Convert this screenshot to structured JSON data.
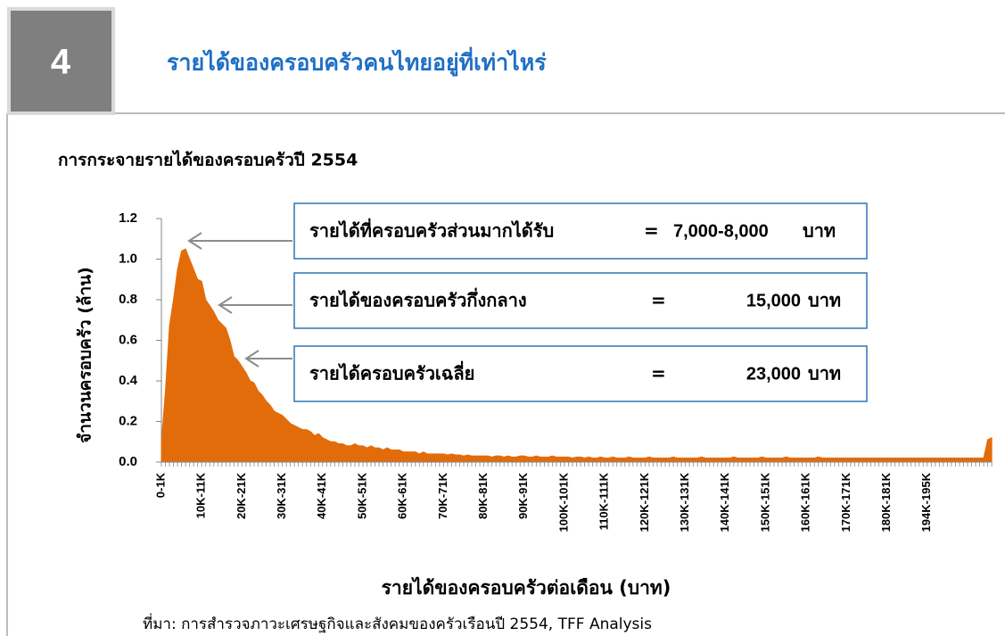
{
  "slide_number": "4",
  "title": "รายได้ของครอบครัวคนไทยอยู่ที่เท่าไหร่",
  "source": "ที่มา: การสำรวจภาวะเศรษฐกิจและสังคมของครัวเรือนปี 2554, TFF Analysis",
  "chart_data": {
    "type": "area",
    "title": "การกระจายรายได้ของครอบครัวปี 2554",
    "y_label": "จำนวนครอบครัว (ล้าน)",
    "x_label": "รายได้ของครอบครัวต่อเดือน (บาท)",
    "color": "#e36c0a",
    "ylim": [
      0,
      1.2
    ],
    "yticks": [
      {
        "value": 0,
        "label": "0.0"
      },
      0.2,
      0.4,
      0.6,
      0.8,
      {
        "value": 1,
        "label": "1.0"
      },
      1.2
    ],
    "annotations": [
      {
        "label": "รายได้ที่ครอบครัวส่วนมากได้รับ",
        "equals": "=",
        "value": "7,000-8,000",
        "unit": "บาท"
      },
      {
        "label": "รายได้ของครอบครัวกึ่งกลาง",
        "equals": "=",
        "value": "15,000",
        "unit": "บาท"
      },
      {
        "label": "รายได้ครอบครัวเฉลี่ย",
        "equals": "=",
        "value": "23,000",
        "unit": "บาท"
      }
    ],
    "categories": [
      "0-1K",
      null,
      null,
      null,
      null,
      null,
      null,
      null,
      null,
      null,
      "10K-11K",
      null,
      null,
      null,
      null,
      null,
      null,
      null,
      null,
      null,
      "20K-21K",
      null,
      null,
      null,
      null,
      null,
      null,
      null,
      null,
      null,
      "30K-31K",
      null,
      null,
      null,
      null,
      null,
      null,
      null,
      null,
      null,
      "40K-41K",
      null,
      null,
      null,
      null,
      null,
      null,
      null,
      null,
      null,
      "50K-51K",
      null,
      null,
      null,
      null,
      null,
      null,
      null,
      null,
      null,
      "60K-61K",
      null,
      null,
      null,
      null,
      null,
      null,
      null,
      null,
      null,
      "70K-71K",
      null,
      null,
      null,
      null,
      null,
      null,
      null,
      null,
      null,
      "80K-81K",
      null,
      null,
      null,
      null,
      null,
      null,
      null,
      null,
      null,
      "90K-91K",
      null,
      null,
      null,
      null,
      null,
      null,
      null,
      null,
      null,
      "100K-101K",
      null,
      null,
      null,
      null,
      null,
      null,
      null,
      null,
      null,
      "110K-111K",
      null,
      null,
      null,
      null,
      null,
      null,
      null,
      null,
      null,
      "120K-121K",
      null,
      null,
      null,
      null,
      null,
      null,
      null,
      null,
      null,
      "130K-131K",
      null,
      null,
      null,
      null,
      null,
      null,
      null,
      null,
      null,
      "140K-141K",
      null,
      null,
      null,
      null,
      null,
      null,
      null,
      null,
      null,
      "150K-151K",
      null,
      null,
      null,
      null,
      null,
      null,
      null,
      null,
      null,
      "160K-161K",
      null,
      null,
      null,
      null,
      null,
      null,
      null,
      null,
      null,
      "170K-171K",
      null,
      null,
      null,
      null,
      null,
      null,
      null,
      null,
      null,
      "180K-181K",
      null,
      null,
      null,
      null,
      null,
      null,
      null,
      null,
      null,
      "194K-195K",
      null,
      null,
      null,
      null,
      null,
      null,
      null,
      null,
      null,
      null,
      null,
      null,
      null,
      null,
      null,
      null
    ],
    "values": [
      0.1,
      0.35,
      0.67,
      0.8,
      0.95,
      1.04,
      1.05,
      1.0,
      0.95,
      0.9,
      0.89,
      0.8,
      0.77,
      0.74,
      0.7,
      0.68,
      0.66,
      0.6,
      0.52,
      0.5,
      0.47,
      0.44,
      0.4,
      0.39,
      0.35,
      0.33,
      0.3,
      0.28,
      0.25,
      0.24,
      0.23,
      0.21,
      0.19,
      0.18,
      0.17,
      0.16,
      0.16,
      0.15,
      0.13,
      0.14,
      0.12,
      0.11,
      0.1,
      0.1,
      0.09,
      0.09,
      0.08,
      0.08,
      0.09,
      0.08,
      0.08,
      0.07,
      0.08,
      0.07,
      0.07,
      0.06,
      0.07,
      0.06,
      0.06,
      0.06,
      0.05,
      0.05,
      0.05,
      0.05,
      0.04,
      0.05,
      0.04,
      0.04,
      0.04,
      0.04,
      0.04,
      0.035,
      0.04,
      0.035,
      0.035,
      0.03,
      0.035,
      0.03,
      0.03,
      0.03,
      0.03,
      0.03,
      0.025,
      0.03,
      0.03,
      0.025,
      0.03,
      0.025,
      0.025,
      0.03,
      0.03,
      0.025,
      0.025,
      0.03,
      0.025,
      0.025,
      0.025,
      0.03,
      0.025,
      0.025,
      0.025,
      0.025,
      0.02,
      0.025,
      0.025,
      0.02,
      0.025,
      0.02,
      0.02,
      0.025,
      0.02,
      0.02,
      0.025,
      0.02,
      0.02,
      0.02,
      0.025,
      0.02,
      0.02,
      0.02,
      0.02,
      0.025,
      0.02,
      0.02,
      0.02,
      0.02,
      0.02,
      0.025,
      0.02,
      0.02,
      0.02,
      0.02,
      0.02,
      0.02,
      0.025,
      0.02,
      0.02,
      0.02,
      0.02,
      0.02,
      0.02,
      0.02,
      0.025,
      0.02,
      0.02,
      0.02,
      0.02,
      0.02,
      0.02,
      0.025,
      0.02,
      0.02,
      0.02,
      0.02,
      0.02,
      0.025,
      0.02,
      0.02,
      0.02,
      0.02,
      0.02,
      0.02,
      0.02,
      0.025,
      0.02,
      0.02,
      0.02,
      0.02,
      0.02,
      0.02,
      0.02,
      0.02,
      0.02,
      0.02,
      0.02,
      0.02,
      0.02,
      0.02,
      0.02,
      0.02,
      0.02,
      0.02,
      0.02,
      0.02,
      0.02,
      0.02,
      0.02,
      0.02,
      0.02,
      0.02,
      0.02,
      0.02,
      0.02,
      0.02,
      0.02,
      0.02,
      0.02,
      0.02,
      0.02,
      0.02,
      0.02,
      0.02,
      0.02,
      0.02,
      0.02,
      0.11,
      0.12
    ]
  }
}
